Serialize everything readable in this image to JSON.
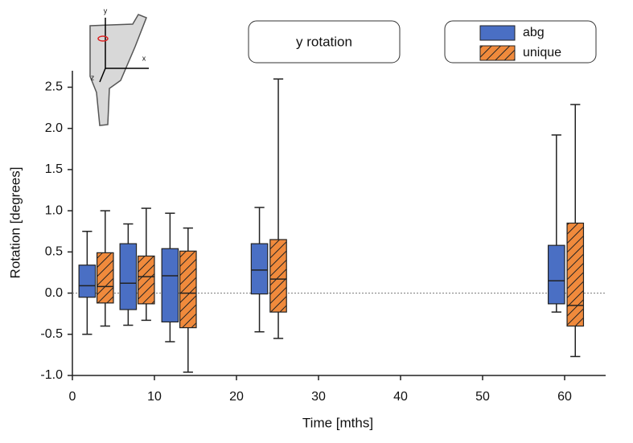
{
  "chart_data": {
    "type": "box",
    "title": "y rotation",
    "xlabel": "Time [mths]",
    "ylabel": "Rotation [degrees]",
    "xlim": [
      0,
      65
    ],
    "ylim": [
      -1,
      2.7
    ],
    "xticks": [
      0,
      10,
      20,
      30,
      40,
      50,
      60
    ],
    "yticks": [
      {
        "value": -1,
        "label": "-1.0"
      },
      -0.5,
      {
        "value": 0,
        "label": "0.0"
      },
      0.5,
      {
        "value": 1,
        "label": "1.0"
      },
      1.5,
      {
        "value": 2,
        "label": "2.0"
      },
      2.5
    ],
    "reference_line": 0,
    "legend": "upper right",
    "inset_labels": [
      "y",
      "x",
      "z"
    ],
    "series": [
      {
        "name": "abg",
        "color": "#4a6fc4",
        "hatch": false,
        "x": [
          1.8,
          6.8,
          11.9,
          22.8,
          59.0
        ],
        "min": [
          -0.5,
          -0.39,
          -0.59,
          -0.47,
          -0.23
        ],
        "q1": [
          -0.05,
          -0.2,
          -0.35,
          -0.01,
          -0.13
        ],
        "median": [
          0.09,
          0.12,
          0.21,
          0.28,
          0.15
        ],
        "q3": [
          0.34,
          0.6,
          0.54,
          0.6,
          0.58
        ],
        "max": [
          0.75,
          0.84,
          0.97,
          1.04,
          1.92
        ]
      },
      {
        "name": "unique",
        "color": "#f08a3c",
        "hatch": true,
        "x": [
          4.0,
          9.0,
          14.1,
          25.1,
          61.3
        ],
        "min": [
          -0.4,
          -0.33,
          -0.96,
          -0.55,
          -0.77
        ],
        "q1": [
          -0.12,
          -0.13,
          -0.42,
          -0.23,
          -0.4
        ],
        "median": [
          0.08,
          0.2,
          0.0,
          0.17,
          -0.15
        ],
        "q3": [
          0.49,
          0.45,
          0.51,
          0.65,
          0.85
        ],
        "max": [
          1.0,
          1.03,
          0.79,
          2.6,
          2.29
        ]
      }
    ]
  }
}
